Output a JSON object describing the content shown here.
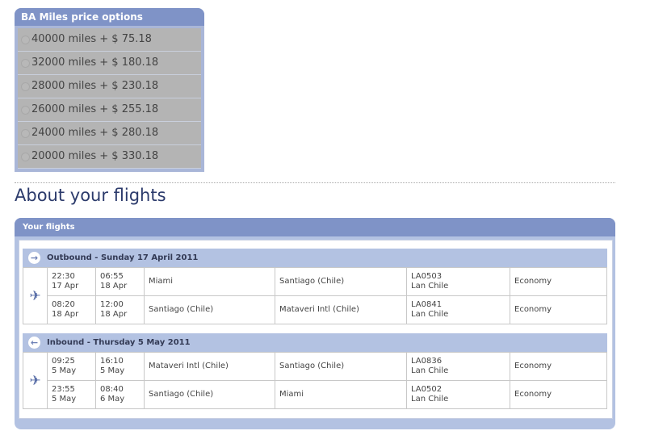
{
  "price_options": {
    "title": "BA Miles price options",
    "options": [
      "40000 miles + $ 75.18",
      "32000 miles + $ 180.18",
      "28000 miles + $ 230.18",
      "26000 miles + $ 255.18",
      "24000 miles + $ 280.18",
      "20000 miles + $ 330.18"
    ]
  },
  "about_title": "About your flights",
  "flights": {
    "title": "Your flights",
    "sections": [
      {
        "header": "Outbound - Sunday 17 April 2011",
        "rows": [
          {
            "dep_time": "22:30",
            "dep_date": "17 Apr",
            "arr_time": "06:55",
            "arr_date": "18 Apr",
            "from": "Miami",
            "to": "Santiago (Chile)",
            "flight": "LA0503",
            "airline": "Lan Chile",
            "cabin": "Economy"
          },
          {
            "dep_time": "08:20",
            "dep_date": "18 Apr",
            "arr_time": "12:00",
            "arr_date": "18 Apr",
            "from": "Santiago (Chile)",
            "to": "Mataveri Intl (Chile)",
            "flight": "LA0841",
            "airline": "Lan Chile",
            "cabin": "Economy"
          }
        ]
      },
      {
        "header": "Inbound - Thursday 5 May 2011",
        "rows": [
          {
            "dep_time": "09:25",
            "dep_date": "5 May",
            "arr_time": "16:10",
            "arr_date": "5 May",
            "from": "Mataveri Intl (Chile)",
            "to": "Santiago (Chile)",
            "flight": "LA0836",
            "airline": "Lan Chile",
            "cabin": "Economy"
          },
          {
            "dep_time": "23:55",
            "dep_date": "5 May",
            "arr_time": "08:40",
            "arr_date": "6 May",
            "from": "Santiago (Chile)",
            "to": "Miami",
            "flight": "LA0502",
            "airline": "Lan Chile",
            "cabin": "Economy"
          }
        ]
      }
    ]
  }
}
